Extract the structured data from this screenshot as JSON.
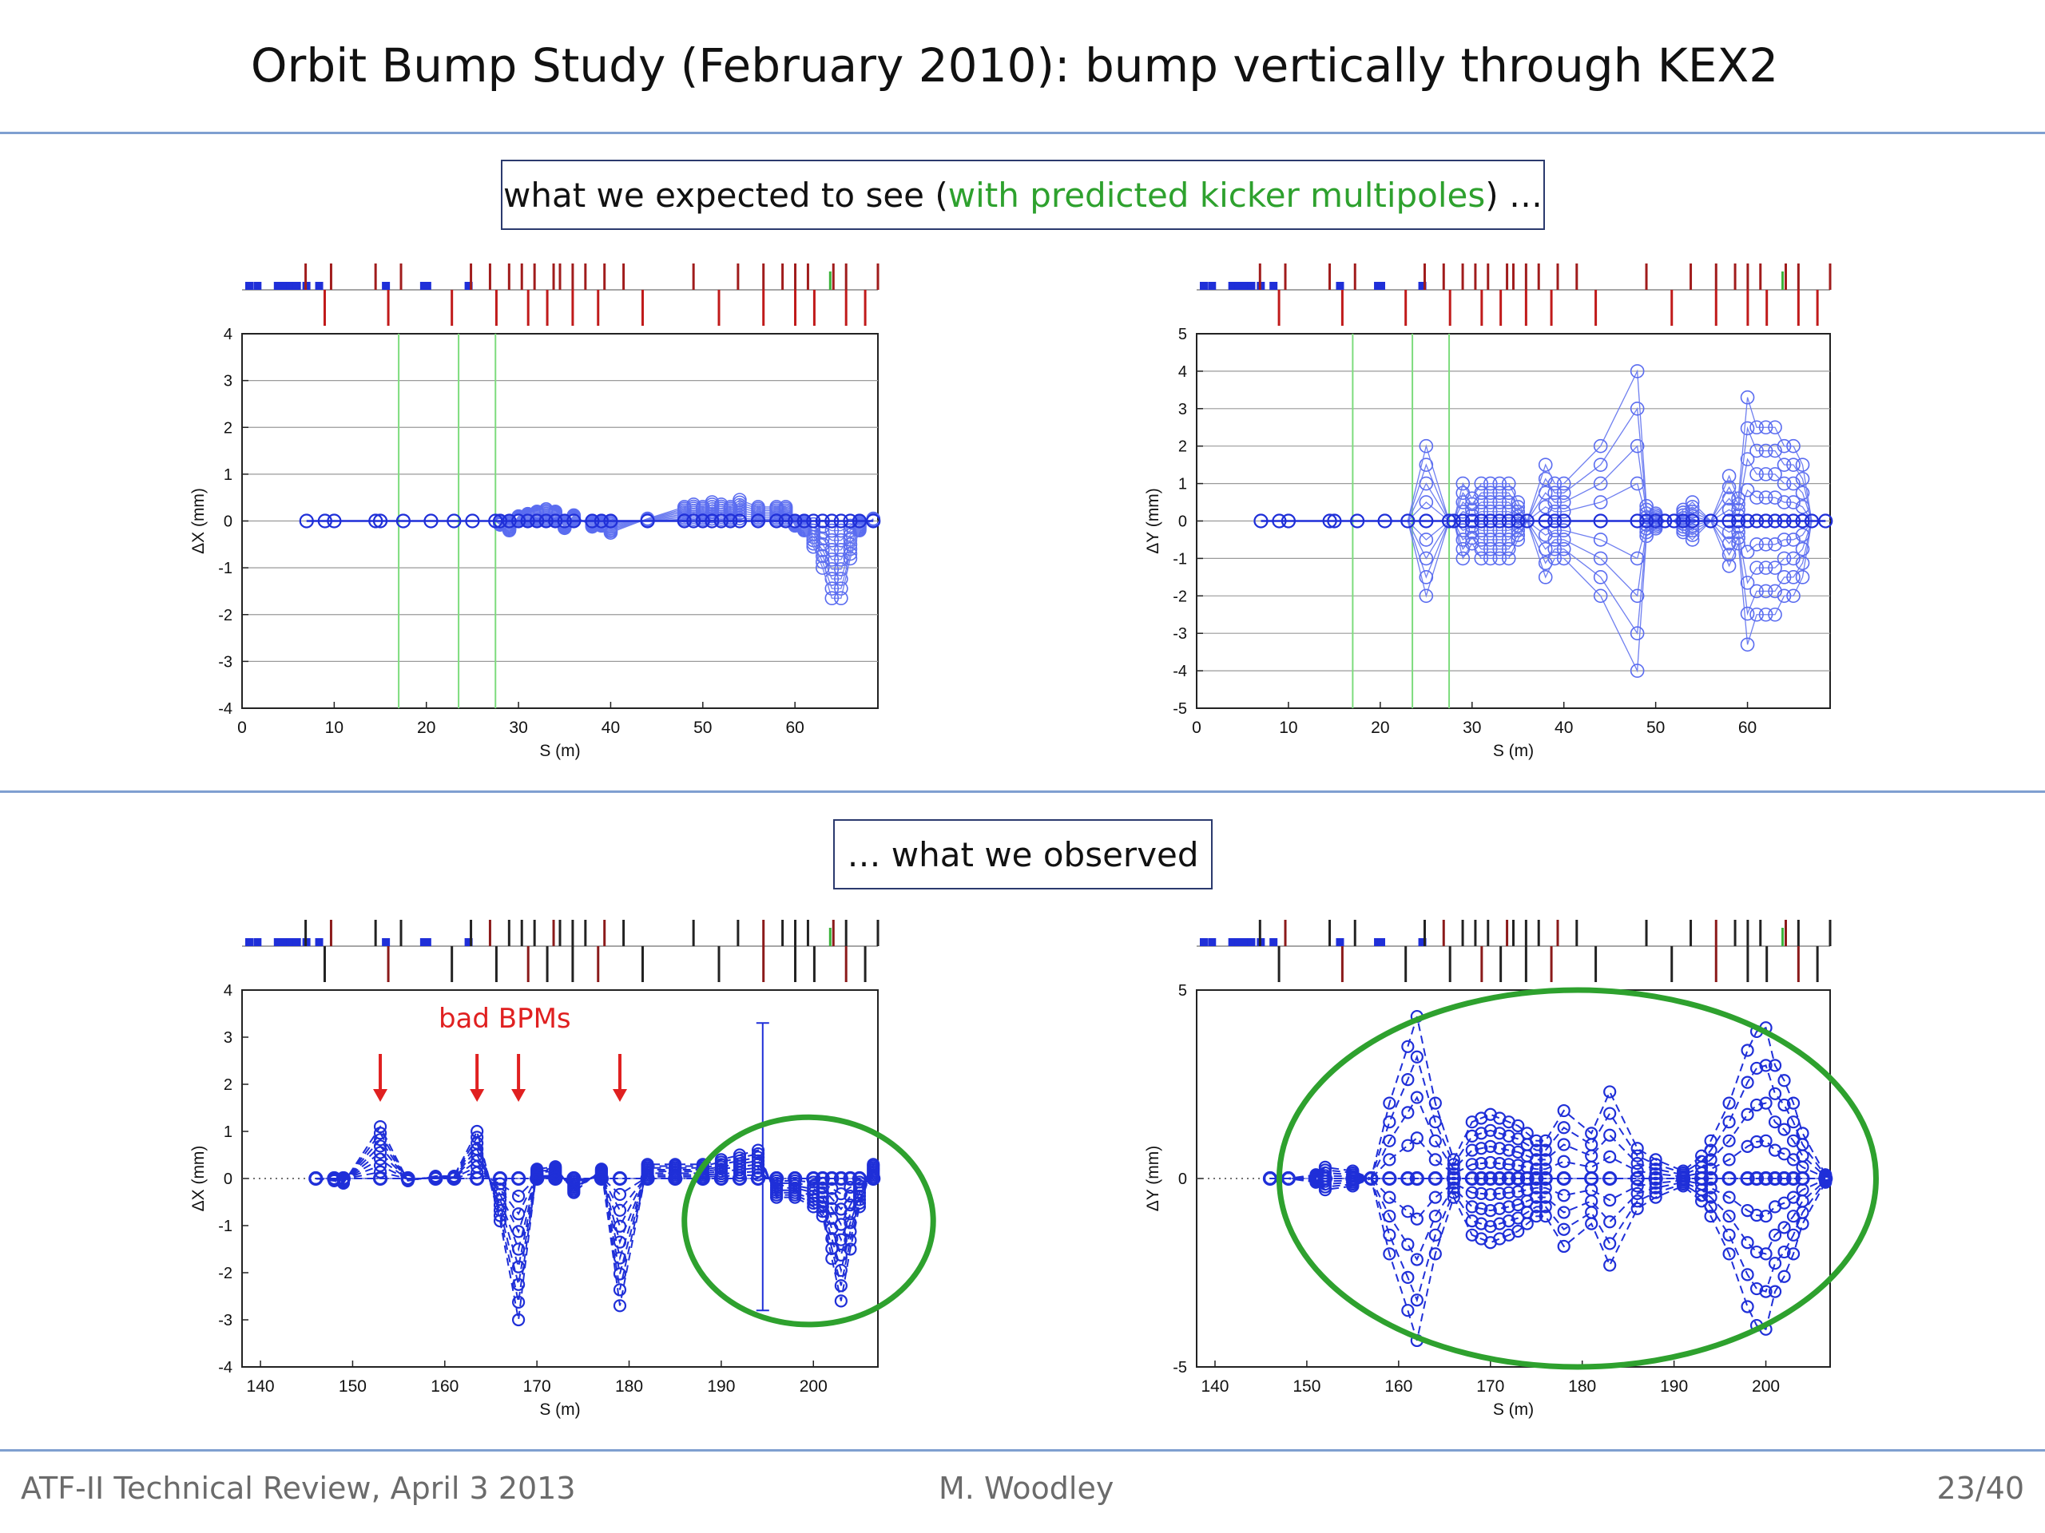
{
  "slide": {
    "title": "Orbit Bump Study (February 2010): bump vertically through KEX2",
    "expected_box": {
      "prefix": "what we expected to see (",
      "green": "with predicted kicker multipoles",
      "suffix": ") …"
    },
    "observed_box": "… what we observed",
    "annotation": "bad BPMs",
    "footer_left": "ATF-II Technical Review, April 3 2013",
    "footer_center": "M. Woodley",
    "footer_right": "23/40",
    "colors": {
      "rule": "#7f9fd0",
      "data": "#1f2fd8",
      "highlight": "#2ea12e",
      "arrow": "#e02020",
      "box_border": "#2b3a6e"
    }
  },
  "chart_data": [
    {
      "id": "tl",
      "type": "line",
      "name": "expected horizontal",
      "xlabel": "S (m)",
      "ylabel": "ΔX (mm)",
      "xlim": [
        0,
        69
      ],
      "ylim": [
        -4,
        4
      ],
      "xticks": [
        0,
        10,
        20,
        30,
        40,
        50,
        60
      ],
      "yticks": [
        4,
        3,
        2,
        1,
        0,
        -1,
        -2,
        -3,
        -4
      ],
      "green_lines_x": [
        17,
        23.5,
        27.5
      ],
      "bpm_s": [
        7,
        9,
        10,
        14.5,
        15,
        17.5,
        20.5,
        23,
        25,
        27.5,
        28,
        29,
        30,
        31,
        32,
        33,
        34,
        35,
        36,
        38,
        39,
        40,
        44,
        48,
        49,
        50,
        51,
        52,
        53,
        54,
        56,
        58,
        59,
        60,
        61,
        62,
        63,
        64,
        65,
        66,
        67,
        68.5
      ],
      "envelope_amp": [
        0,
        0,
        0,
        0,
        0,
        0,
        0,
        0,
        0,
        0,
        0.08,
        0.2,
        0.1,
        0.15,
        0.2,
        0.25,
        0.2,
        0.15,
        0.12,
        0.12,
        0.1,
        0.25,
        0.05,
        0.3,
        0.35,
        0.3,
        0.4,
        0.35,
        0.3,
        0.45,
        0.3,
        0.3,
        0.3,
        0.1,
        0.2,
        0.55,
        1.0,
        1.65,
        1.65,
        0.8,
        0.2,
        0.05
      ],
      "envelope_sign": [
        1,
        1,
        1,
        1,
        1,
        1,
        1,
        1,
        1,
        1,
        -1,
        -1,
        1,
        1,
        1,
        1,
        1,
        -1,
        1,
        -1,
        -1,
        -1,
        1,
        1,
        1,
        1,
        1,
        1,
        1,
        1,
        1,
        1,
        1,
        -1,
        -1,
        -1,
        -1,
        -1,
        -1,
        -1,
        -1,
        1
      ],
      "n_curves": 9,
      "style": "solid"
    },
    {
      "id": "tr",
      "type": "line",
      "name": "expected vertical",
      "xlabel": "S (m)",
      "ylabel": "ΔY (mm)",
      "xlim": [
        0,
        69
      ],
      "ylim": [
        -5,
        5
      ],
      "xticks": [
        0,
        10,
        20,
        30,
        40,
        50,
        60
      ],
      "yticks": [
        5,
        4,
        3,
        2,
        1,
        0,
        -1,
        -2,
        -3,
        -4,
        -5
      ],
      "green_lines_x": [
        17,
        23.5,
        27.5
      ],
      "bpm_s": [
        7,
        9,
        10,
        14.5,
        15,
        17.5,
        20.5,
        23,
        25,
        27.5,
        28,
        29,
        30,
        31,
        32,
        33,
        34,
        35,
        36,
        38,
        39,
        40,
        44,
        48,
        49,
        50,
        51,
        52,
        53,
        54,
        56,
        58,
        59,
        60,
        61,
        62,
        63,
        64,
        65,
        66,
        67,
        68.5
      ],
      "envelope_amp": [
        0,
        0,
        0,
        0,
        0,
        0,
        0,
        0,
        2.0,
        0,
        0,
        1.0,
        0.6,
        1.0,
        1.0,
        1.0,
        1.0,
        0.5,
        0,
        1.5,
        1.0,
        1.0,
        2.0,
        0.8,
        0.4,
        0.2,
        0,
        0,
        0.3,
        0.5,
        0,
        1.2,
        0.6,
        3.3,
        2.5,
        2.5,
        2.5,
        2.0,
        2.0,
        1.5,
        0,
        0
      ],
      "envelope_override": {
        "23": 4.0
      },
      "n_curves": 9,
      "style": "solid"
    },
    {
      "id": "bl",
      "type": "line",
      "name": "observed horizontal",
      "xlabel": "S (m)",
      "ylabel": "ΔX (mm)",
      "xlim": [
        138,
        207
      ],
      "ylim": [
        -4,
        4
      ],
      "xticks": [
        140,
        150,
        160,
        170,
        180,
        190,
        200
      ],
      "yticks": [
        4,
        3,
        2,
        1,
        0,
        -1,
        -2,
        -3,
        -4
      ],
      "bpm_s": [
        146,
        148,
        149,
        153,
        156,
        159,
        161,
        163.5,
        166,
        168,
        170,
        172,
        174,
        177,
        179,
        182,
        185,
        188,
        190,
        192,
        194,
        196,
        198,
        200,
        201,
        202,
        203,
        204,
        205,
        206.5
      ],
      "envelope_amp": [
        0,
        0.05,
        0.1,
        1.1,
        0.05,
        0.05,
        0.05,
        1.0,
        0.9,
        3.0,
        0.2,
        0.25,
        0.3,
        0.2,
        2.7,
        0.3,
        0.3,
        0.3,
        0.4,
        0.5,
        0.6,
        0.4,
        0.4,
        0.6,
        0.8,
        1.7,
        2.6,
        1.5,
        0.6,
        0.3
      ],
      "envelope_sign": [
        -1,
        -1,
        -1,
        1,
        -1,
        1,
        1,
        1,
        -1,
        -1,
        1,
        1,
        -1,
        1,
        -1,
        1,
        1,
        1,
        1,
        1,
        1,
        -1,
        -1,
        -1,
        -1,
        -1,
        -1,
        -1,
        -1,
        1
      ],
      "error_bar": {
        "x": 194.5,
        "low": -2.8,
        "high": 3.3
      },
      "bad_bpm_x": [
        153,
        163.5,
        168,
        179
      ],
      "highlight_ellipse": {
        "cx": 199.5,
        "cy": -0.9,
        "rx_units": 13.5,
        "ry_units": 2.2
      },
      "n_curves": 9,
      "style": "dashed"
    },
    {
      "id": "br",
      "type": "line",
      "name": "observed vertical",
      "xlabel": "S (m)",
      "ylabel": "ΔY (mm)",
      "xlim": [
        138,
        207
      ],
      "ylim": [
        -5,
        5
      ],
      "xticks": [
        140,
        150,
        160,
        170,
        180,
        190,
        200
      ],
      "yticks": [
        5,
        0,
        -5
      ],
      "bpm_s": [
        146,
        148,
        151,
        152,
        155,
        157,
        159,
        161,
        162,
        164,
        166,
        168,
        169,
        170,
        171,
        172,
        173,
        174,
        175,
        176,
        178,
        181,
        183,
        186,
        188,
        191,
        193,
        194,
        196,
        198,
        199,
        200,
        201,
        202,
        203,
        204,
        206.5
      ],
      "envelope_amp": [
        0,
        0,
        0.1,
        0.3,
        0.2,
        0,
        2.0,
        3.5,
        4.3,
        2.0,
        0.5,
        1.5,
        1.6,
        1.7,
        1.6,
        1.5,
        1.4,
        1.2,
        1.0,
        1.0,
        1.8,
        1.2,
        2.3,
        0.8,
        0.5,
        0.2,
        0.6,
        1.0,
        2.0,
        3.4,
        3.9,
        4.0,
        3.0,
        2.6,
        2.0,
        1.2,
        0.1
      ],
      "highlight_ellipse": {
        "cx": 179.5,
        "cy": 0,
        "rx_units": 32.5,
        "ry_units": 5.0
      },
      "n_curves": 9,
      "style": "dashed"
    }
  ]
}
